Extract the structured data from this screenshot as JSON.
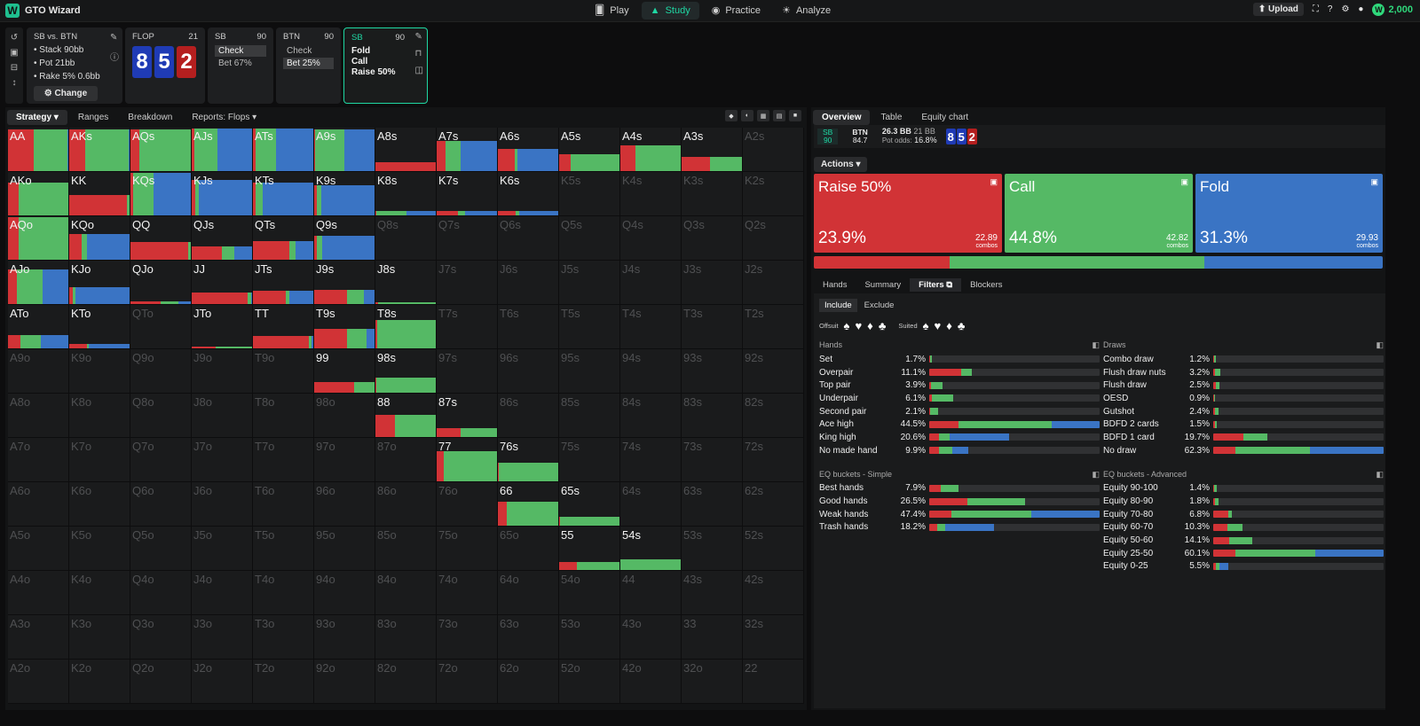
{
  "app": {
    "title": "GTO Wizard",
    "nav": [
      {
        "label": "Play",
        "icon": "cards-icon"
      },
      {
        "label": "Study",
        "icon": "mortarboard-icon"
      },
      {
        "label": "Practice",
        "icon": "gamepad-icon"
      },
      {
        "label": "Analyze",
        "icon": "bulb-icon"
      }
    ],
    "upload_label": "Upload",
    "coins": "2,000"
  },
  "spot": {
    "title": "SB vs. BTN",
    "stack": "Stack 90bb",
    "pot": "Pot 21bb",
    "rake": "Rake 5% 0.6bb",
    "change_label": "Change"
  },
  "flop": {
    "title": "FLOP",
    "count": "21",
    "cards": [
      "8",
      "5",
      "2"
    ]
  },
  "sb_card": {
    "title": "SB",
    "stack": "90",
    "actions": [
      "Check",
      "Bet 67%"
    ]
  },
  "btn_card": {
    "title": "BTN",
    "stack": "90",
    "actions": [
      "Check",
      "Bet 25%"
    ]
  },
  "sb_active": {
    "title": "SB",
    "stack": "90",
    "actions": [
      "Fold",
      "Call",
      "Raise 50%"
    ]
  },
  "left_tabs": [
    "Strategy",
    "Ranges",
    "Breakdown",
    "Reports: Flops"
  ],
  "grid_rows": [
    [
      "AA",
      "AKs",
      "AQs",
      "AJs",
      "ATs",
      "A9s",
      "A8s",
      "A7s",
      "A6s",
      "A5s",
      "A4s",
      "A3s",
      "A2s"
    ],
    [
      "AKo",
      "KK",
      "KQs",
      "KJs",
      "KTs",
      "K9s",
      "K8s",
      "K7s",
      "K6s",
      "K5s",
      "K4s",
      "K3s",
      "K2s"
    ],
    [
      "AQo",
      "KQo",
      "QQ",
      "QJs",
      "QTs",
      "Q9s",
      "Q8s",
      "Q7s",
      "Q6s",
      "Q5s",
      "Q4s",
      "Q3s",
      "Q2s"
    ],
    [
      "AJo",
      "KJo",
      "QJo",
      "JJ",
      "JTs",
      "J9s",
      "J8s",
      "J7s",
      "J6s",
      "J5s",
      "J4s",
      "J3s",
      "J2s"
    ],
    [
      "ATo",
      "KTo",
      "QTo",
      "JTo",
      "TT",
      "T9s",
      "T8s",
      "T7s",
      "T6s",
      "T5s",
      "T4s",
      "T3s",
      "T2s"
    ],
    [
      "A9o",
      "K9o",
      "Q9o",
      "J9o",
      "T9o",
      "99",
      "98s",
      "97s",
      "96s",
      "95s",
      "94s",
      "93s",
      "92s"
    ],
    [
      "A8o",
      "K8o",
      "Q8o",
      "J8o",
      "T8o",
      "98o",
      "88",
      "87s",
      "86s",
      "85s",
      "84s",
      "83s",
      "82s"
    ],
    [
      "A7o",
      "K7o",
      "Q7o",
      "J7o",
      "T7o",
      "97o",
      "87o",
      "77",
      "76s",
      "75s",
      "74s",
      "73s",
      "72s"
    ],
    [
      "A6o",
      "K6o",
      "Q6o",
      "J6o",
      "T6o",
      "96o",
      "86o",
      "76o",
      "66",
      "65s",
      "64s",
      "63s",
      "62s"
    ],
    [
      "A5o",
      "K5o",
      "Q5o",
      "J5o",
      "T5o",
      "95o",
      "85o",
      "75o",
      "65o",
      "55",
      "54s",
      "53s",
      "52s"
    ],
    [
      "A4o",
      "K4o",
      "Q4o",
      "J4o",
      "T4o",
      "94o",
      "84o",
      "74o",
      "64o",
      "54o",
      "44",
      "43s",
      "42s"
    ],
    [
      "A3o",
      "K3o",
      "Q3o",
      "J3o",
      "T3o",
      "93o",
      "83o",
      "73o",
      "63o",
      "53o",
      "43o",
      "33",
      "32s"
    ],
    [
      "A2o",
      "K2o",
      "Q2o",
      "J2o",
      "T2o",
      "92o",
      "82o",
      "72o",
      "62o",
      "52o",
      "42o",
      "32o",
      "22"
    ]
  ],
  "hand_strategy": {
    "AA": [
      0.96,
      0.42,
      0.56,
      0.02
    ],
    "AKs": [
      0.96,
      0.26,
      0.73,
      0.01
    ],
    "AQs": [
      0.96,
      0.14,
      0.86,
      0.0
    ],
    "AJs": [
      0.98,
      0.04,
      0.38,
      0.58
    ],
    "ATs": [
      0.98,
      0.04,
      0.34,
      0.62
    ],
    "A9s": [
      0.96,
      0.02,
      0.48,
      0.5
    ],
    "A8s": [
      0.2,
      1.0,
      0.0,
      0.0
    ],
    "A7s": [
      0.7,
      0.15,
      0.25,
      0.6
    ],
    "A6s": [
      0.52,
      0.28,
      0.04,
      0.68
    ],
    "A5s": [
      0.38,
      0.19,
      0.81,
      0.0
    ],
    "A4s": [
      0.6,
      0.25,
      0.75,
      0.0
    ],
    "A3s": [
      0.32,
      0.47,
      0.53,
      0.0
    ],
    "AKo": [
      0.76,
      0.17,
      0.83,
      0.0
    ],
    "KK": [
      0.46,
      0.96,
      0.04,
      0.0
    ],
    "KQs": [
      0.98,
      0.05,
      0.33,
      0.62
    ],
    "KJs": [
      0.82,
      0.06,
      0.06,
      0.88
    ],
    "KTs": [
      0.76,
      0.04,
      0.12,
      0.84
    ],
    "K9s": [
      0.7,
      0.04,
      0.08,
      0.88
    ],
    "K8s": [
      0.1,
      0.02,
      0.5,
      0.48
    ],
    "K7s": [
      0.1,
      0.35,
      0.12,
      0.53
    ],
    "K6s": [
      0.1,
      0.3,
      0.05,
      0.65
    ],
    "AQo": [
      0.98,
      0.18,
      0.82,
      0.0
    ],
    "KQo": [
      0.6,
      0.2,
      0.1,
      0.7
    ],
    "QQ": [
      0.4,
      0.96,
      0.04,
      0.0
    ],
    "QJs": [
      0.3,
      0.5,
      0.2,
      0.3
    ],
    "QTs": [
      0.42,
      0.6,
      0.1,
      0.3
    ],
    "Q9s": [
      0.56,
      0.05,
      0.08,
      0.87
    ],
    "AJo": [
      0.8,
      0.15,
      0.42,
      0.43
    ],
    "KJo": [
      0.38,
      0.06,
      0.04,
      0.9
    ],
    "QJo": [
      0.06,
      0.5,
      0.3,
      0.2
    ],
    "JJ": [
      0.26,
      0.92,
      0.06,
      0.02
    ],
    "JTs": [
      0.3,
      0.55,
      0.05,
      0.4
    ],
    "J9s": [
      0.32,
      0.55,
      0.28,
      0.17
    ],
    "J8s": [
      0.04,
      0.05,
      0.95,
      0.0
    ],
    "ATo": [
      0.3,
      0.2,
      0.35,
      0.45
    ],
    "KTo": [
      0.1,
      0.3,
      0.02,
      0.68
    ],
    "JTo": [
      0.04,
      0.4,
      0.6,
      0.0
    ],
    "TT": [
      0.28,
      0.92,
      0.05,
      0.03
    ],
    "T9s": [
      0.44,
      0.55,
      0.32,
      0.13
    ],
    "T8s": [
      0.66,
      0.03,
      0.97,
      0.0
    ],
    "99": [
      0.24,
      0.66,
      0.34,
      0.0
    ],
    "98s": [
      0.34,
      0.02,
      0.98,
      0.0
    ],
    "88": [
      0.52,
      0.33,
      0.67,
      0.0
    ],
    "87s": [
      0.2,
      0.4,
      0.6,
      0.0
    ],
    "77": [
      0.7,
      0.12,
      0.88,
      0.0
    ],
    "76s": [
      0.42,
      0.02,
      0.98,
      0.0
    ],
    "66": [
      0.56,
      0.14,
      0.86,
      0.0
    ],
    "65s": [
      0.2,
      0.01,
      0.99,
      0.0
    ],
    "55": [
      0.18,
      0.3,
      0.7,
      0.0
    ],
    "54s": [
      0.24,
      0.0,
      1.0,
      0.0
    ]
  },
  "right_tabs": [
    "Overview",
    "Table",
    "Equity chart"
  ],
  "info": {
    "sb": "SB",
    "sb_stack": "90",
    "btn": "BTN",
    "btn_stack": "84.7",
    "pot": "26.3 BB",
    "pot_bb": "21 BB",
    "pot_odds_label": "Pot odds:",
    "pot_odds": "16.8%",
    "cards": [
      "8",
      "5",
      "2"
    ]
  },
  "actions_label": "Actions",
  "actions": [
    {
      "name": "Raise 50%",
      "pct": "23.9%",
      "combos": "22.89",
      "combos_label": "combos",
      "color": "#d13336",
      "share": 23.9
    },
    {
      "name": "Call",
      "pct": "44.8%",
      "combos": "42.82",
      "combos_label": "combos",
      "color": "#55b965",
      "share": 44.8
    },
    {
      "name": "Fold",
      "pct": "31.3%",
      "combos": "29.93",
      "combos_label": "combos",
      "color": "#3a74c4",
      "share": 31.3
    }
  ],
  "sub_tabs": [
    "Hands",
    "Summary",
    "Filters",
    "Blockers"
  ],
  "filters": {
    "include": "Include",
    "exclude": "Exclude",
    "offsuit": "Offsuit",
    "suited": "Suited"
  },
  "hands_head": "Hands",
  "hands": [
    {
      "name": "Set",
      "pct": "1.7%",
      "f": 0.017,
      "r": 0.4,
      "g": 0.6,
      "b": 0.0
    },
    {
      "name": "Overpair",
      "pct": "11.1%",
      "f": 0.25,
      "r": 0.75,
      "g": 0.25,
      "b": 0.0
    },
    {
      "name": "Top pair",
      "pct": "3.9%",
      "f": 0.08,
      "r": 0.1,
      "g": 0.9,
      "b": 0.0
    },
    {
      "name": "Underpair",
      "pct": "6.1%",
      "f": 0.14,
      "r": 0.1,
      "g": 0.9,
      "b": 0.0
    },
    {
      "name": "Second pair",
      "pct": "2.1%",
      "f": 0.05,
      "r": 0.1,
      "g": 0.9,
      "b": 0.0
    },
    {
      "name": "Ace high",
      "pct": "44.5%",
      "f": 1.0,
      "r": 0.17,
      "g": 0.55,
      "b": 0.28
    },
    {
      "name": "King high",
      "pct": "20.6%",
      "f": 0.47,
      "r": 0.12,
      "g": 0.13,
      "b": 0.75
    },
    {
      "name": "No made hand",
      "pct": "9.9%",
      "f": 0.23,
      "r": 0.24,
      "g": 0.35,
      "b": 0.41
    }
  ],
  "draws_head": "Draws",
  "draws": [
    {
      "name": "Combo draw",
      "pct": "1.2%",
      "f": 0.015,
      "r": 0.4,
      "g": 0.6,
      "b": 0.0
    },
    {
      "name": "Flush draw nuts",
      "pct": "3.2%",
      "f": 0.04,
      "r": 0.3,
      "g": 0.7,
      "b": 0.0
    },
    {
      "name": "Flush draw",
      "pct": "2.5%",
      "f": 0.035,
      "r": 0.4,
      "g": 0.6,
      "b": 0.0
    },
    {
      "name": "OESD",
      "pct": "0.9%",
      "f": 0.012,
      "r": 0.5,
      "g": 0.5,
      "b": 0.0
    },
    {
      "name": "Gutshot",
      "pct": "2.4%",
      "f": 0.03,
      "r": 0.3,
      "g": 0.7,
      "b": 0.0
    },
    {
      "name": "BDFD 2 cards",
      "pct": "1.5%",
      "f": 0.02,
      "r": 0.4,
      "g": 0.6,
      "b": 0.0
    },
    {
      "name": "BDFD 1 card",
      "pct": "19.7%",
      "f": 0.32,
      "r": 0.55,
      "g": 0.45,
      "b": 0.0
    },
    {
      "name": "No draw",
      "pct": "62.3%",
      "f": 1.0,
      "r": 0.13,
      "g": 0.44,
      "b": 0.43
    }
  ],
  "eq_simple_head": "EQ buckets - Simple",
  "eq_simple": [
    {
      "name": "Best hands",
      "pct": "7.9%",
      "f": 0.17,
      "r": 0.4,
      "g": 0.6,
      "b": 0.0
    },
    {
      "name": "Good hands",
      "pct": "26.5%",
      "f": 0.56,
      "r": 0.4,
      "g": 0.6,
      "b": 0.0
    },
    {
      "name": "Weak hands",
      "pct": "47.4%",
      "f": 1.0,
      "r": 0.13,
      "g": 0.47,
      "b": 0.4
    },
    {
      "name": "Trash hands",
      "pct": "18.2%",
      "f": 0.38,
      "r": 0.12,
      "g": 0.12,
      "b": 0.76
    }
  ],
  "eq_adv_head": "EQ buckets - Advanced",
  "eq_adv": [
    {
      "name": "Equity 90-100",
      "pct": "1.4%",
      "f": 0.02,
      "r": 0.3,
      "g": 0.7,
      "b": 0.0
    },
    {
      "name": "Equity 80-90",
      "pct": "1.8%",
      "f": 0.03,
      "r": 0.3,
      "g": 0.7,
      "b": 0.0
    },
    {
      "name": "Equity 70-80",
      "pct": "6.8%",
      "f": 0.11,
      "r": 0.8,
      "g": 0.2,
      "b": 0.0
    },
    {
      "name": "Equity 60-70",
      "pct": "10.3%",
      "f": 0.17,
      "r": 0.5,
      "g": 0.5,
      "b": 0.0
    },
    {
      "name": "Equity 50-60",
      "pct": "14.1%",
      "f": 0.23,
      "r": 0.4,
      "g": 0.6,
      "b": 0.0
    },
    {
      "name": "Equity 25-50",
      "pct": "60.1%",
      "f": 1.0,
      "r": 0.13,
      "g": 0.47,
      "b": 0.4
    },
    {
      "name": "Equity 0-25",
      "pct": "5.5%",
      "f": 0.09,
      "r": 0.2,
      "g": 0.2,
      "b": 0.6
    }
  ]
}
